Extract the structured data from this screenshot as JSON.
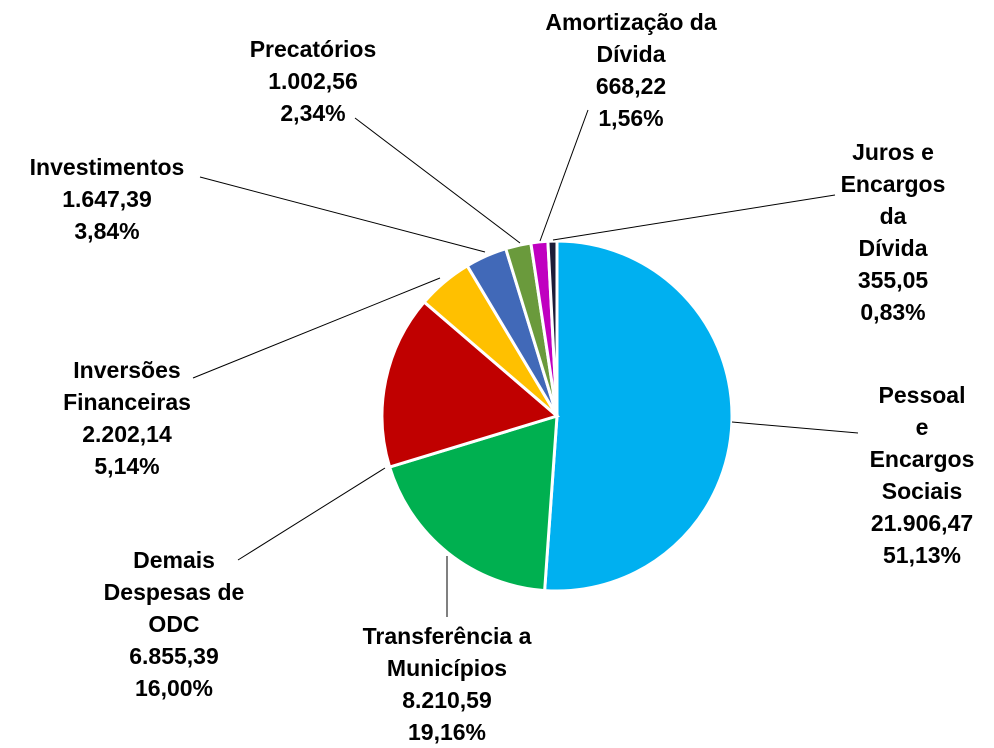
{
  "chart_data": {
    "type": "pie",
    "categories": [
      "Pessoal e\nEncargos\nSociais",
      "Transferência a\nMunicípios",
      "Demais\nDespesas de\nODC",
      "Inversões\nFinanceiras",
      "Investimentos",
      "Precatórios",
      "Amortização da\nDívida",
      "Juros e\nEncargos da\nDívida"
    ],
    "values": [
      21906.47,
      8210.59,
      6855.39,
      2202.14,
      1647.39,
      1002.56,
      668.22,
      355.05
    ],
    "value_labels": [
      "21.906,47",
      "8.210,59",
      "6.855,39",
      "2.202,14",
      "1.647,39",
      "1.002,56",
      "668,22",
      "355,05"
    ],
    "percents": [
      51.13,
      19.16,
      16.0,
      5.14,
      3.84,
      2.34,
      1.56,
      0.83
    ],
    "percent_labels": [
      "51,13%",
      "19,16%",
      "16,00%",
      "5,14%",
      "3,84%",
      "2,34%",
      "1,56%",
      "0,83%"
    ],
    "colors": [
      "#00b0f0",
      "#00b050",
      "#c00000",
      "#ffc000",
      "#4169b8",
      "#6a9a3c",
      "#c000c0",
      "#1c1c38"
    ]
  }
}
